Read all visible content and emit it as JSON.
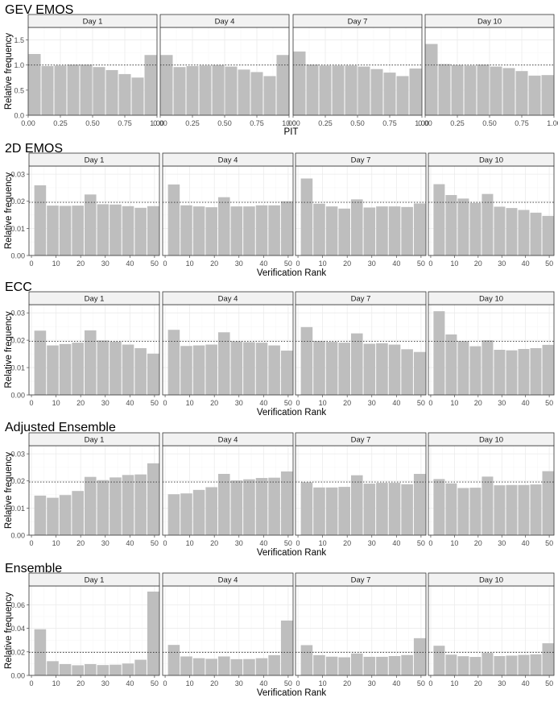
{
  "colors": {
    "bar": "#bebebe",
    "strip_fill": "#f2f2f2",
    "strip_border": "#333333",
    "panel_border": "#333333",
    "grid_major": "#ebebeb",
    "grid_minor": "#f5f5f5",
    "ref_line": "#333333",
    "text": "#000000",
    "tick_text": "#4d4d4d"
  },
  "chart_data": [
    {
      "type": "bar",
      "title": "GEV EMOS",
      "xlabel": "PIT",
      "ylabel": "Relative frequency",
      "xlim": [
        0,
        1
      ],
      "ylim": [
        0,
        1.75
      ],
      "x_ticks": [
        0,
        0.25,
        0.5,
        0.75,
        1
      ],
      "x_tick_labels": [
        "0.00",
        "0.25",
        "0.50",
        "0.75",
        "1.00"
      ],
      "y_ticks": [
        0,
        0.5,
        1,
        1.5
      ],
      "y_tick_labels": [
        "0.0",
        "0.5",
        "1.0",
        "1.5"
      ],
      "reference_line": 1,
      "bin_width": 0.1,
      "x": [
        0.05,
        0.15,
        0.25,
        0.35,
        0.45,
        0.55,
        0.65,
        0.75,
        0.85,
        0.95
      ],
      "grid": true,
      "facets": [
        {
          "label": "Day 1",
          "values": [
            1.22,
            0.98,
            0.99,
            1.01,
            1.01,
            0.96,
            0.9,
            0.82,
            0.75,
            1.2
          ]
        },
        {
          "label": "Day 4",
          "values": [
            1.2,
            0.96,
            0.98,
            0.99,
            1.0,
            0.97,
            0.91,
            0.86,
            0.78,
            1.2
          ]
        },
        {
          "label": "Day 7",
          "values": [
            1.27,
            1.01,
            0.99,
            0.99,
            0.99,
            0.97,
            0.92,
            0.85,
            0.78,
            0.93
          ]
        },
        {
          "label": "Day 10",
          "values": [
            1.42,
            1.02,
            1.0,
            0.99,
            1.01,
            0.97,
            0.94,
            0.88,
            0.79,
            0.8
          ]
        }
      ]
    },
    {
      "type": "bar",
      "title": "2D EMOS",
      "xlabel": "Verification Rank",
      "ylabel": "Relative frequency",
      "xlim": [
        -1,
        52
      ],
      "ylim": [
        0,
        0.033
      ],
      "x_ticks": [
        0,
        10,
        20,
        30,
        40,
        50
      ],
      "x_tick_labels": [
        "0",
        "10",
        "20",
        "30",
        "40",
        "50"
      ],
      "y_ticks": [
        0,
        0.01,
        0.02,
        0.03
      ],
      "y_tick_labels": [
        "0.00",
        "0.01",
        "0.02",
        "0.03"
      ],
      "reference_line": 0.0196,
      "bin_width": 5.1,
      "x": [
        3.55,
        8.65,
        13.75,
        18.85,
        23.95,
        29.05,
        34.15,
        39.25,
        44.35,
        49.45
      ],
      "grid": true,
      "facets": [
        {
          "label": "Day 1",
          "values": [
            0.0259,
            0.0184,
            0.0183,
            0.0184,
            0.0225,
            0.0189,
            0.0188,
            0.0182,
            0.0176,
            0.0182
          ]
        },
        {
          "label": "Day 4",
          "values": [
            0.0262,
            0.0185,
            0.0181,
            0.0178,
            0.0215,
            0.0181,
            0.0181,
            0.0185,
            0.0185,
            0.02
          ]
        },
        {
          "label": "Day 7",
          "values": [
            0.0284,
            0.0191,
            0.0181,
            0.0173,
            0.0207,
            0.0177,
            0.0181,
            0.0181,
            0.0179,
            0.0192
          ]
        },
        {
          "label": "Day 10",
          "values": [
            0.0263,
            0.0223,
            0.021,
            0.0194,
            0.0227,
            0.018,
            0.0175,
            0.0168,
            0.0158,
            0.0146
          ]
        }
      ]
    },
    {
      "type": "bar",
      "title": "ECC",
      "xlabel": "Verification Rank",
      "ylabel": "Relative frequency",
      "xlim": [
        -1,
        52
      ],
      "ylim": [
        0,
        0.033
      ],
      "x_ticks": [
        0,
        10,
        20,
        30,
        40,
        50
      ],
      "x_tick_labels": [
        "0",
        "10",
        "20",
        "30",
        "40",
        "50"
      ],
      "y_ticks": [
        0,
        0.01,
        0.02,
        0.03
      ],
      "y_tick_labels": [
        "0.00",
        "0.01",
        "0.02",
        "0.03"
      ],
      "reference_line": 0.0196,
      "bin_width": 5.1,
      "x": [
        3.55,
        8.65,
        13.75,
        18.85,
        23.95,
        29.05,
        34.15,
        39.25,
        44.35,
        49.45
      ],
      "grid": true,
      "facets": [
        {
          "label": "Day 1",
          "values": [
            0.0235,
            0.0181,
            0.0186,
            0.0191,
            0.0236,
            0.0199,
            0.0195,
            0.0184,
            0.0171,
            0.0151
          ]
        },
        {
          "label": "Day 4",
          "values": [
            0.0238,
            0.0179,
            0.0181,
            0.0184,
            0.0229,
            0.0196,
            0.0193,
            0.0191,
            0.0181,
            0.0162
          ]
        },
        {
          "label": "Day 7",
          "values": [
            0.0248,
            0.0197,
            0.0194,
            0.0191,
            0.0225,
            0.0187,
            0.0189,
            0.0184,
            0.0167,
            0.0157
          ]
        },
        {
          "label": "Day 10",
          "values": [
            0.0306,
            0.0221,
            0.0197,
            0.0178,
            0.02,
            0.0165,
            0.0163,
            0.0168,
            0.0171,
            0.0183
          ]
        }
      ]
    },
    {
      "type": "bar",
      "title": "Adjusted Ensemble",
      "xlabel": "Verification Rank",
      "ylabel": "Relative frequency",
      "xlim": [
        -1,
        52
      ],
      "ylim": [
        0,
        0.033
      ],
      "x_ticks": [
        0,
        10,
        20,
        30,
        40,
        50
      ],
      "x_tick_labels": [
        "0",
        "10",
        "20",
        "30",
        "40",
        "50"
      ],
      "y_ticks": [
        0,
        0.01,
        0.02,
        0.03
      ],
      "y_tick_labels": [
        "0.00",
        "0.01",
        "0.02",
        "0.03"
      ],
      "reference_line": 0.0196,
      "bin_width": 5.1,
      "x": [
        3.55,
        8.65,
        13.75,
        18.85,
        23.95,
        29.05,
        34.15,
        39.25,
        44.35,
        49.45
      ],
      "grid": true,
      "facets": [
        {
          "label": "Day 1",
          "values": [
            0.0146,
            0.0138,
            0.0148,
            0.0163,
            0.0215,
            0.0203,
            0.0213,
            0.0222,
            0.0224,
            0.0265
          ]
        },
        {
          "label": "Day 4",
          "values": [
            0.0151,
            0.0154,
            0.0167,
            0.0177,
            0.0226,
            0.0202,
            0.0206,
            0.0211,
            0.0212,
            0.0235
          ]
        },
        {
          "label": "Day 7",
          "values": [
            0.0195,
            0.0176,
            0.0176,
            0.0178,
            0.0221,
            0.019,
            0.0193,
            0.0193,
            0.0188,
            0.0226
          ]
        },
        {
          "label": "Day 10",
          "values": [
            0.0207,
            0.0191,
            0.0174,
            0.0175,
            0.0216,
            0.0184,
            0.0185,
            0.0185,
            0.0187,
            0.0236
          ]
        }
      ]
    },
    {
      "type": "bar",
      "title": "Ensemble",
      "xlabel": "Verification Rank",
      "ylabel": "Relative frequency",
      "xlim": [
        -1,
        52
      ],
      "ylim": [
        0,
        0.076
      ],
      "x_ticks": [
        0,
        10,
        20,
        30,
        40,
        50
      ],
      "x_tick_labels": [
        "0",
        "10",
        "20",
        "30",
        "40",
        "50"
      ],
      "y_ticks": [
        0,
        0.02,
        0.04,
        0.06
      ],
      "y_tick_labels": [
        "0.00",
        "0.02",
        "0.04",
        "0.06"
      ],
      "reference_line": 0.0196,
      "bin_width": 5.1,
      "x": [
        3.55,
        8.65,
        13.75,
        18.85,
        23.95,
        29.05,
        34.15,
        39.25,
        44.35,
        49.45
      ],
      "grid": true,
      "facets": [
        {
          "label": "Day 1",
          "values": [
            0.0392,
            0.0121,
            0.0096,
            0.0086,
            0.0096,
            0.0088,
            0.0091,
            0.0101,
            0.0133,
            0.0712
          ]
        },
        {
          "label": "Day 4",
          "values": [
            0.0259,
            0.0161,
            0.0146,
            0.0141,
            0.0161,
            0.0138,
            0.0139,
            0.0146,
            0.0172,
            0.0466
          ]
        },
        {
          "label": "Day 7",
          "values": [
            0.0257,
            0.0172,
            0.0159,
            0.0154,
            0.0186,
            0.0158,
            0.0158,
            0.0164,
            0.0173,
            0.0316
          ]
        },
        {
          "label": "Day 10",
          "values": [
            0.0252,
            0.0176,
            0.0163,
            0.0157,
            0.0191,
            0.0164,
            0.0168,
            0.0174,
            0.0179,
            0.0273
          ]
        }
      ]
    }
  ]
}
